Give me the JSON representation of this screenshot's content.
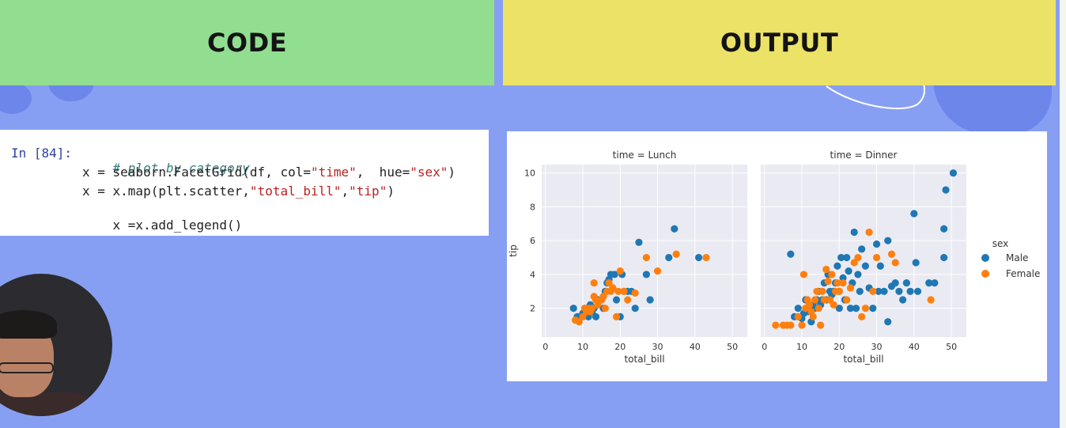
{
  "banners": {
    "code": "CODE",
    "output": "OUTPUT"
  },
  "code": {
    "prompt": "In [84]:",
    "comment": "# plot by category",
    "line2": {
      "pre": "x = seaborn.FacetGrid(df, col=",
      "arg1": "\"time\"",
      "mid": ",  hue=",
      "arg2": "\"sex\"",
      "post": ")"
    },
    "line3": {
      "pre": "x = x.map(plt.scatter,",
      "arg1": "\"total_bill\"",
      "mid": ",",
      "arg2": "\"tip\"",
      "post": ")"
    },
    "line4": "x =x.add_legend()"
  },
  "chart_data": {
    "type": "scatter",
    "facets": [
      {
        "title": "time = Lunch",
        "series": [
          {
            "name": "Male",
            "points": [
              [
                7.5,
                2
              ],
              [
                8.5,
                1.5
              ],
              [
                9.5,
                1.5
              ],
              [
                10,
                1.7
              ],
              [
                10.5,
                1.8
              ],
              [
                11,
                2
              ],
              [
                11.5,
                1.5
              ],
              [
                12,
                2.2
              ],
              [
                12.5,
                1.8
              ],
              [
                13,
                2
              ],
              [
                13.5,
                1.5
              ],
              [
                14,
                2.5
              ],
              [
                15,
                2.5
              ],
              [
                15.5,
                2
              ],
              [
                16,
                3
              ],
              [
                16.5,
                3.5
              ],
              [
                17,
                3.7
              ],
              [
                17.5,
                4
              ],
              [
                18,
                3.2
              ],
              [
                18.5,
                4
              ],
              [
                19,
                2.5
              ],
              [
                20,
                1.5
              ],
              [
                20.5,
                4
              ],
              [
                21,
                3
              ],
              [
                22,
                3
              ],
              [
                23,
                3
              ],
              [
                24,
                2
              ],
              [
                25,
                5.9
              ],
              [
                27,
                4
              ],
              [
                28,
                2.5
              ],
              [
                33,
                5
              ],
              [
                34.5,
                6.7
              ],
              [
                41,
                5
              ]
            ]
          },
          {
            "name": "Female",
            "points": [
              [
                8,
                1.3
              ],
              [
                9,
                1.2
              ],
              [
                10,
                1.5
              ],
              [
                10.5,
                2
              ],
              [
                11,
                1.8
              ],
              [
                11.5,
                2
              ],
              [
                12,
                1.8
              ],
              [
                12.5,
                2
              ],
              [
                13,
                2.7
              ],
              [
                13,
                3.5
              ],
              [
                13.5,
                2.5
              ],
              [
                14,
                2.2
              ],
              [
                15,
                2.5
              ],
              [
                15.5,
                2.7
              ],
              [
                16,
                2
              ],
              [
                16.5,
                3
              ],
              [
                17,
                3.5
              ],
              [
                17.5,
                3
              ],
              [
                18,
                3.2
              ],
              [
                19,
                1.5
              ],
              [
                19.5,
                3
              ],
              [
                20,
                4.2
              ],
              [
                21,
                3
              ],
              [
                22,
                2.5
              ],
              [
                24,
                2.9
              ],
              [
                27,
                5
              ],
              [
                30,
                4.2
              ],
              [
                35,
                5.2
              ],
              [
                43,
                5
              ]
            ]
          }
        ]
      },
      {
        "title": "time = Dinner",
        "series": [
          {
            "name": "Male",
            "points": [
              [
                8,
                1.5
              ],
              [
                9,
                2
              ],
              [
                10,
                1.4
              ],
              [
                10.5,
                1.7
              ],
              [
                11,
                2.5
              ],
              [
                11.5,
                1.8
              ],
              [
                12,
                2
              ],
              [
                12.5,
                1.2
              ],
              [
                13,
                2.2
              ],
              [
                13.5,
                2
              ],
              [
                14,
                2.5
              ],
              [
                14.5,
                3
              ],
              [
                15,
                2.2
              ],
              [
                15.5,
                2.5
              ],
              [
                16,
                3.5
              ],
              [
                16.5,
                2.5
              ],
              [
                17,
                4
              ],
              [
                17.5,
                3
              ],
              [
                18,
                2.8
              ],
              [
                18.5,
                3
              ],
              [
                19,
                3.5
              ],
              [
                19.5,
                4.5
              ],
              [
                20,
                2
              ],
              [
                20,
                3
              ],
              [
                20.5,
                5
              ],
              [
                21,
                3.8
              ],
              [
                21.5,
                2.5
              ],
              [
                22,
                5
              ],
              [
                22.5,
                4.2
              ],
              [
                23,
                2
              ],
              [
                23.5,
                3.5
              ],
              [
                24,
                6.5
              ],
              [
                24.5,
                2
              ],
              [
                25,
                4
              ],
              [
                25.5,
                3
              ],
              [
                26,
                5.5
              ],
              [
                27,
                4.5
              ],
              [
                28,
                3.2
              ],
              [
                29,
                2
              ],
              [
                30,
                5.8
              ],
              [
                30.5,
                3
              ],
              [
                31,
                4.5
              ],
              [
                32,
                3
              ],
              [
                33,
                6
              ],
              [
                33,
                1.2
              ],
              [
                34,
                3.3
              ],
              [
                35,
                3.5
              ],
              [
                36,
                3
              ],
              [
                37,
                2.5
              ],
              [
                38,
                3.5
              ],
              [
                39,
                3
              ],
              [
                40,
                7.6
              ],
              [
                40.5,
                4.7
              ],
              [
                41,
                3
              ],
              [
                44,
                3.5
              ],
              [
                45.5,
                3.5
              ],
              [
                48,
                5
              ],
              [
                48,
                6.7
              ],
              [
                48.5,
                9
              ],
              [
                50.5,
                10
              ],
              [
                7,
                5.2
              ]
            ]
          },
          {
            "name": "Female",
            "points": [
              [
                3,
                1
              ],
              [
                5,
                1
              ],
              [
                6,
                1
              ],
              [
                7,
                1
              ],
              [
                9,
                1.5
              ],
              [
                10,
                1
              ],
              [
                10.5,
                4
              ],
              [
                11,
                2
              ],
              [
                11.5,
                2.5
              ],
              [
                12,
                2.2
              ],
              [
                12.5,
                1.8
              ],
              [
                13,
                1.5
              ],
              [
                13.5,
                2.5
              ],
              [
                14,
                3
              ],
              [
                14.5,
                2
              ],
              [
                15,
                1
              ],
              [
                15.5,
                3
              ],
              [
                16,
                2.5
              ],
              [
                16.5,
                4.3
              ],
              [
                17,
                3.6
              ],
              [
                17.5,
                2.5
              ],
              [
                18,
                4
              ],
              [
                18.5,
                2.2
              ],
              [
                19,
                3
              ],
              [
                19.5,
                3.5
              ],
              [
                20,
                3
              ],
              [
                21,
                3.5
              ],
              [
                22,
                2.5
              ],
              [
                23,
                3.2
              ],
              [
                24,
                4.7
              ],
              [
                25,
                5
              ],
              [
                26,
                1.5
              ],
              [
                27,
                2
              ],
              [
                28,
                6.5
              ],
              [
                29,
                3
              ],
              [
                30,
                5
              ],
              [
                34,
                5.2
              ],
              [
                35,
                4.7
              ],
              [
                44.5,
                2.5
              ]
            ]
          }
        ]
      }
    ],
    "xlabel": "total_bill",
    "ylabel": "tip",
    "xticks": [
      0,
      10,
      20,
      30,
      40,
      50
    ],
    "yticks": [
      2,
      4,
      6,
      8,
      10
    ],
    "xlim": [
      -1,
      54
    ],
    "ylim": [
      0.3,
      10.5
    ],
    "legend": {
      "title": "sex",
      "placement": "right"
    },
    "colors": {
      "Male": "#1f77b4",
      "Female": "#ff7f0e",
      "panel_bg": "#eaeaf2",
      "grid": "#ffffff"
    }
  }
}
